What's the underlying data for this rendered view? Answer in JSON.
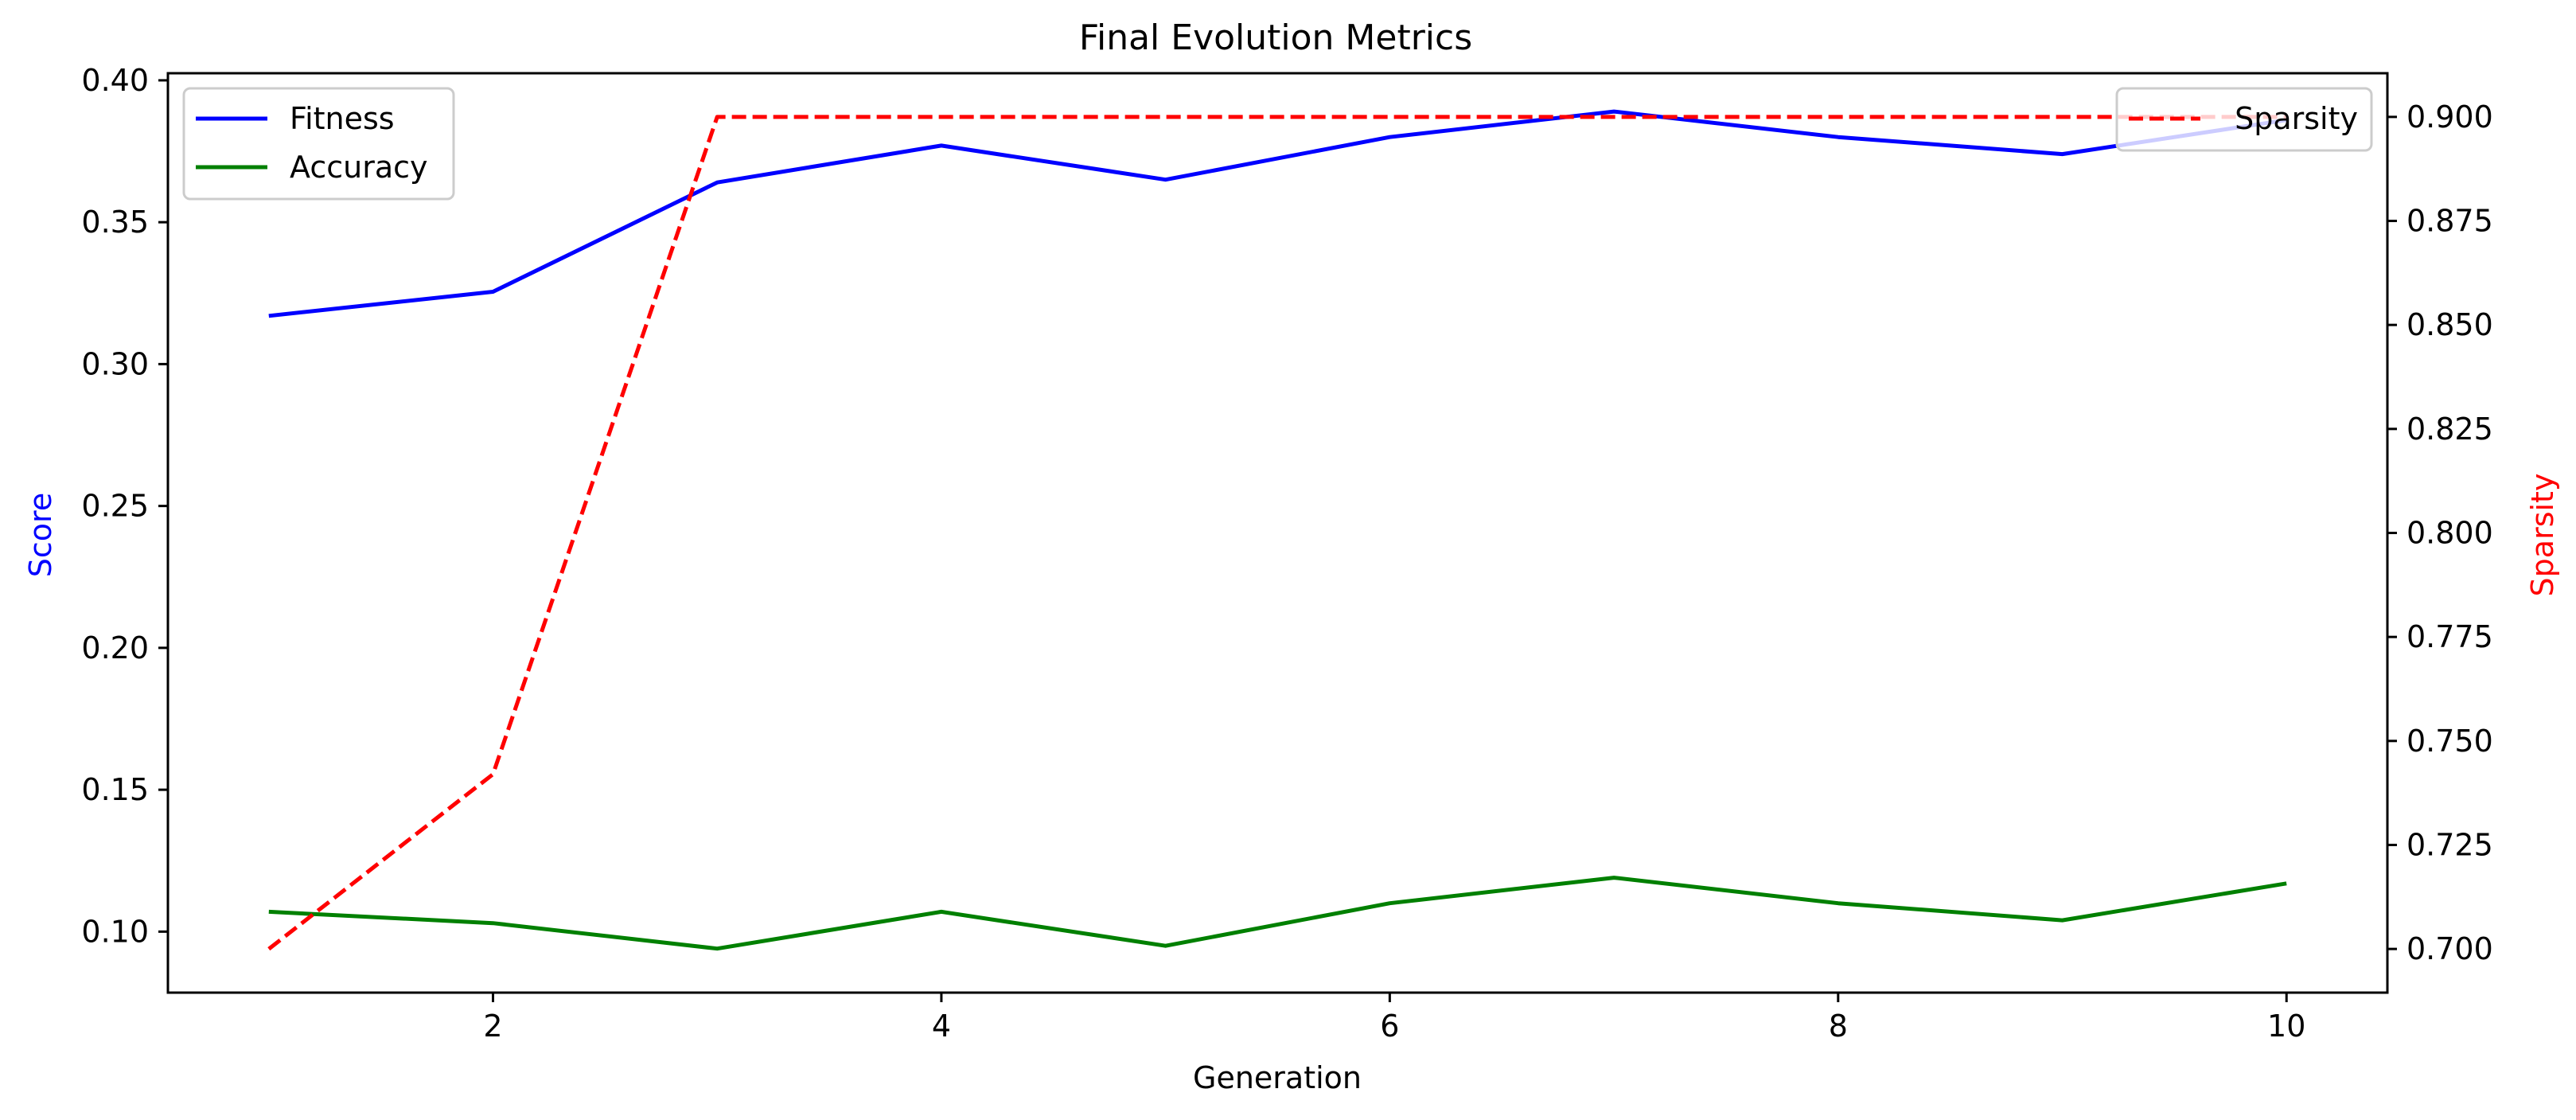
{
  "chart_data": {
    "type": "line",
    "title": "Final Evolution Metrics",
    "xlabel": "Generation",
    "ylabel": "Score",
    "ylabel_right": "Sparsity",
    "xlim": [
      0.55,
      10.45
    ],
    "ylim": [
      0.0785,
      0.4025
    ],
    "ylim_right": [
      0.6895,
      0.9105
    ],
    "x_ticks": [
      2,
      4,
      6,
      8,
      10
    ],
    "y_ticks": [
      0.1,
      0.15,
      0.2,
      0.25,
      0.3,
      0.35,
      0.4
    ],
    "y_ticks_right": [
      0.7,
      0.725,
      0.75,
      0.775,
      0.8,
      0.825,
      0.85,
      0.875,
      0.9
    ],
    "grid": false,
    "x": [
      1,
      2,
      3,
      4,
      5,
      6,
      7,
      8,
      9,
      10
    ],
    "series": [
      {
        "name": "Fitness",
        "axis": "left",
        "color": "#0000ff",
        "style": "solid",
        "values": [
          0.317,
          0.3255,
          0.364,
          0.377,
          0.365,
          0.38,
          0.389,
          0.38,
          0.374,
          0.386
        ]
      },
      {
        "name": "Accuracy",
        "axis": "left",
        "color": "#008000",
        "style": "solid",
        "values": [
          0.107,
          0.103,
          0.094,
          0.107,
          0.095,
          0.11,
          0.119,
          0.11,
          0.104,
          0.117
        ]
      },
      {
        "name": "Sparsity",
        "axis": "right",
        "color": "#ff0000",
        "style": "dashed",
        "values": [
          0.7,
          0.742,
          0.9,
          0.9,
          0.9,
          0.9,
          0.9,
          0.9,
          0.9,
          0.9
        ]
      }
    ],
    "legend_left": {
      "placement": "top-left",
      "entries": [
        "Fitness",
        "Accuracy"
      ]
    },
    "legend_right": {
      "placement": "top-right",
      "entries": [
        "Sparsity"
      ]
    },
    "ylabel_color": "#0000ff",
    "ylabel_right_color": "#ff0000"
  }
}
